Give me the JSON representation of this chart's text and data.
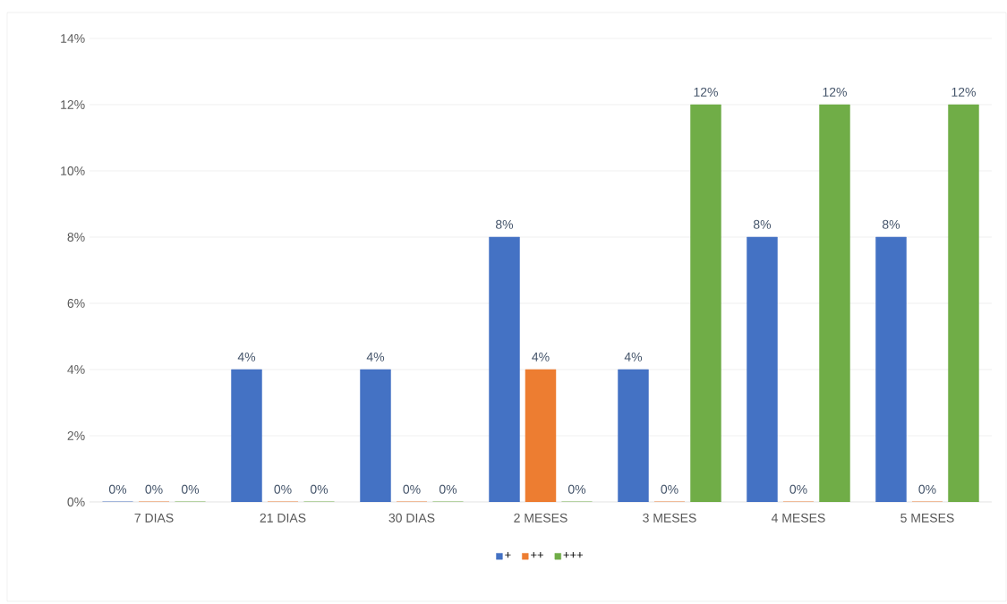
{
  "chart_data": {
    "type": "bar",
    "categories": [
      "7 DIAS",
      "21 DIAS",
      "30 DIAS",
      "2 MESES",
      "3 MESES",
      "4 MESES",
      "5 MESES"
    ],
    "series": [
      {
        "name": "+",
        "color": "#4472c4",
        "values": [
          0,
          4,
          4,
          8,
          4,
          8,
          8
        ],
        "value_labels": [
          "0%",
          "4%",
          "4%",
          "8%",
          "4%",
          "8%",
          "8%"
        ]
      },
      {
        "name": "++",
        "color": "#ed7d31",
        "values": [
          0,
          0,
          0,
          4,
          0,
          0,
          0
        ],
        "value_labels": [
          "0%",
          "0%",
          "0%",
          "4%",
          "0%",
          "0%",
          "0%"
        ]
      },
      {
        "name": "+++",
        "color": "#70ad47",
        "values": [
          0,
          0,
          0,
          0,
          12,
          12,
          12
        ],
        "value_labels": [
          "0%",
          "0%",
          "0%",
          "0%",
          "12%",
          "12%",
          "12%"
        ]
      }
    ],
    "ylim": [
      0,
      14
    ],
    "yticks": [
      {
        "value": 0,
        "label": "0%"
      },
      {
        "value": 2,
        "label": "2%"
      },
      {
        "value": 4,
        "label": "4%"
      },
      {
        "value": 6,
        "label": "6%"
      },
      {
        "value": 8,
        "label": "8%"
      },
      {
        "value": 10,
        "label": "10%"
      },
      {
        "value": 12,
        "label": "12%"
      },
      {
        "value": 14,
        "label": "14%"
      }
    ],
    "grid": "y",
    "legend": "bottom"
  }
}
